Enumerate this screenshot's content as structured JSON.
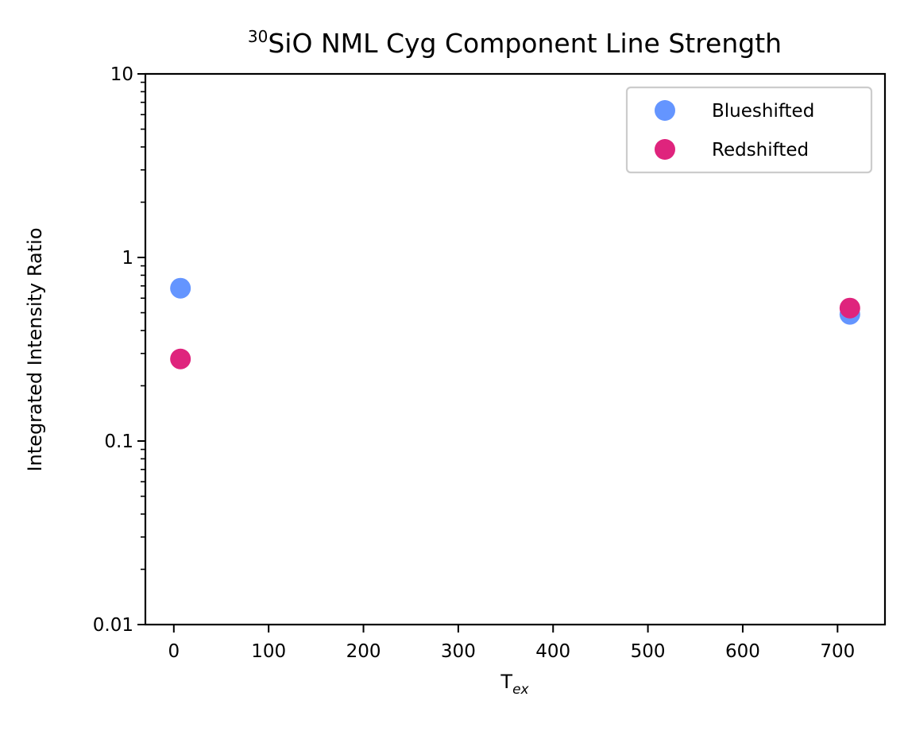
{
  "chart_data": {
    "type": "scatter",
    "title_prefix_sup": "30",
    "title_main": "SiO NML Cyg Component Line Strength",
    "xlabel_main": "T",
    "xlabel_sub": "ex",
    "ylabel": "Integrated Intensity Ratio",
    "xlim": [
      -30,
      750
    ],
    "ylim": [
      0.01,
      10
    ],
    "yscale": "log",
    "grid": false,
    "legend_position": "top-right",
    "x_ticks": [
      0,
      100,
      200,
      300,
      400,
      500,
      600,
      700
    ],
    "x_tick_labels": [
      "0",
      "100",
      "200",
      "300",
      "400",
      "500",
      "600",
      "700"
    ],
    "y_ticks": [
      0.01,
      0.1,
      1,
      10
    ],
    "y_tick_labels": [
      "0.01",
      "0.1",
      "1",
      "10"
    ],
    "series": [
      {
        "name": "Blueshifted",
        "color": "#6495ff",
        "points": [
          {
            "x": 7,
            "y": 0.68
          },
          {
            "x": 713,
            "y": 0.49
          }
        ]
      },
      {
        "name": "Redshifted",
        "color": "#df247d",
        "points": [
          {
            "x": 7,
            "y": 0.28
          },
          {
            "x": 713,
            "y": 0.53
          }
        ]
      }
    ]
  }
}
